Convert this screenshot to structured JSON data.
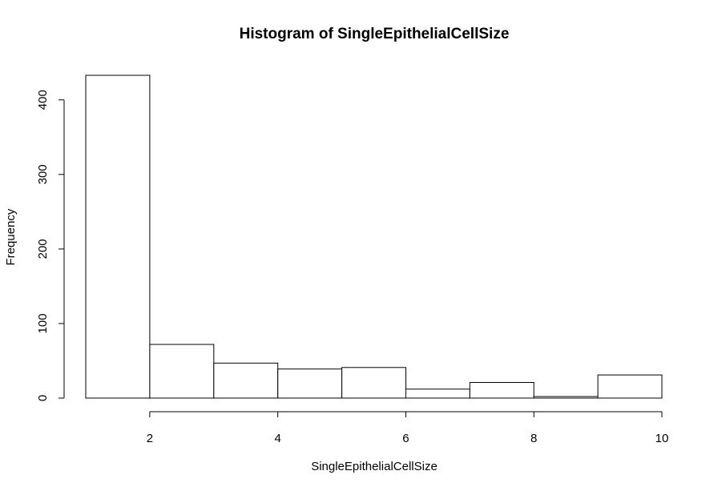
{
  "chart_data": {
    "type": "bar",
    "title": "Histogram of SingleEpithelialCellSize",
    "xlabel": "SingleEpithelialCellSize",
    "ylabel": "Frequency",
    "bins": [
      {
        "start": 1,
        "end": 2,
        "count": 433
      },
      {
        "start": 2,
        "end": 3,
        "count": 72
      },
      {
        "start": 3,
        "end": 4,
        "count": 47
      },
      {
        "start": 4,
        "end": 5,
        "count": 39
      },
      {
        "start": 5,
        "end": 6,
        "count": 41
      },
      {
        "start": 6,
        "end": 7,
        "count": 12
      },
      {
        "start": 7,
        "end": 8,
        "count": 21
      },
      {
        "start": 8,
        "end": 9,
        "count": 2
      },
      {
        "start": 9,
        "end": 10,
        "count": 31
      }
    ],
    "xlim": [
      1,
      10
    ],
    "ylim": [
      0,
      433
    ],
    "x_ticks": [
      2,
      4,
      6,
      8,
      10
    ],
    "y_ticks": [
      0,
      100,
      200,
      300,
      400
    ],
    "grid": false,
    "legend": "none",
    "colors": {
      "bar_fill": "#ffffff",
      "bar_stroke": "#000000"
    }
  }
}
